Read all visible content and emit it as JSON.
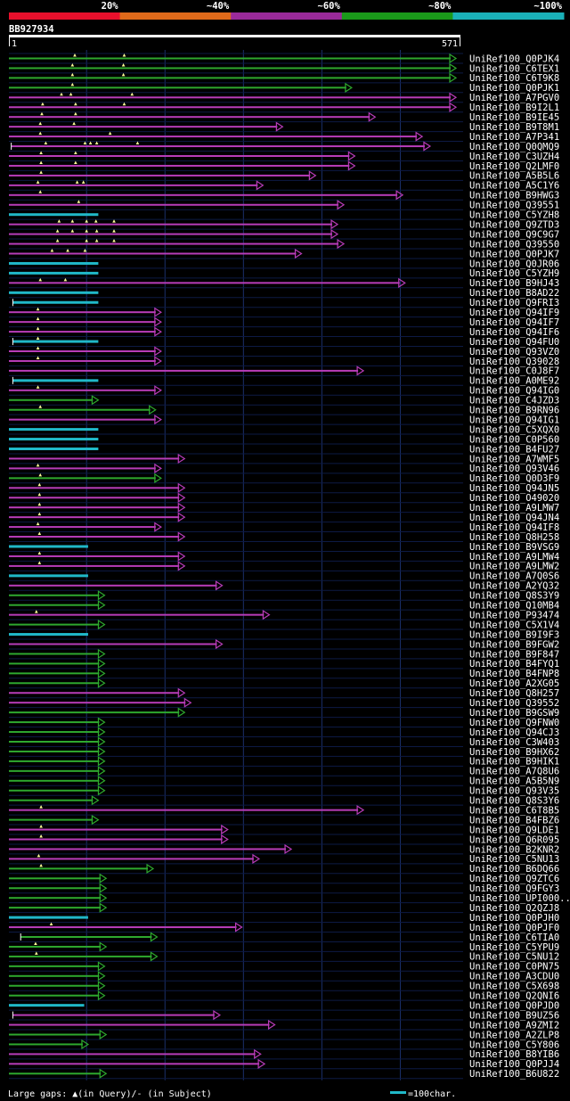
{
  "chart_data": {
    "type": "alignment-overview",
    "query_id": "BB927934",
    "ruler_start": "1",
    "ruler_end": "571",
    "query_length": 571,
    "identity_scale": [
      {
        "label": "20%",
        "color": "#e8102c"
      },
      {
        "label": "~40%",
        "color": "#e06a1a"
      },
      {
        "label": "~60%",
        "color": "#9a2a9a"
      },
      {
        "label": "~80%",
        "color": "#1a9a1a"
      },
      {
        "label": "~100%",
        "color": "#1ab0b8"
      }
    ],
    "colors": {
      "magenta": "#b83cb8",
      "green": "#2ea82e",
      "cyan": "#20b8c8",
      "grid": "#1a2f6a",
      "gap": "#ffff99"
    },
    "legend": {
      "gaps_text": "Large gaps: ▲(in Query)/- (in Subject)",
      "scale_text": "=100char.",
      "scale_chars": 100
    },
    "hits": [
      {
        "name": "UniRef100_Q0PJK4",
        "c": "g",
        "s": 1,
        "e": 571,
        "q": [
          85,
          148
        ]
      },
      {
        "name": "UniRef100_C6TEX1",
        "c": "g",
        "s": 1,
        "e": 571,
        "q": [
          82,
          147
        ]
      },
      {
        "name": "UniRef100_C6T9K8",
        "c": "g",
        "s": 1,
        "e": 571,
        "q": [
          82,
          147
        ]
      },
      {
        "name": "UniRef100_Q0PJK1",
        "c": "g",
        "s": 1,
        "e": 438,
        "q": [
          82
        ]
      },
      {
        "name": "UniRef100_A7PGV0",
        "c": "m",
        "s": 1,
        "e": 571,
        "q": [
          68,
          80,
          158
        ]
      },
      {
        "name": "UniRef100_B9I2L1",
        "c": "m",
        "s": 1,
        "e": 571,
        "q": [
          44,
          86,
          148
        ]
      },
      {
        "name": "UniRef100_B9IE45",
        "c": "m",
        "s": 1,
        "e": 468,
        "q": [
          43,
          86
        ]
      },
      {
        "name": "UniRef100_B9T8M1",
        "c": "m",
        "s": 1,
        "e": 350,
        "q": [
          41,
          84
        ]
      },
      {
        "name": "UniRef100_A7P341",
        "c": "m",
        "s": 1,
        "e": 528,
        "q": [
          41,
          130
        ]
      },
      {
        "name": "UniRef100_Q0QMQ9",
        "c": "m",
        "s": 4,
        "e": 538,
        "q": [
          48,
          98,
          105,
          113,
          165
        ]
      },
      {
        "name": "UniRef100_C3UZH4",
        "c": "m",
        "s": 1,
        "e": 442,
        "q": [
          42,
          86
        ]
      },
      {
        "name": "UniRef100_Q2LMF0",
        "c": "m",
        "s": 1,
        "e": 442,
        "q": [
          42,
          86
        ]
      },
      {
        "name": "UniRef100_A5B5L6",
        "c": "m",
        "s": 1,
        "e": 392,
        "q": [
          42
        ]
      },
      {
        "name": "UniRef100_A5C1Y6",
        "c": "m",
        "s": 1,
        "e": 325,
        "q": [
          38,
          88,
          96
        ]
      },
      {
        "name": "UniRef100_B9HWG3",
        "c": "m",
        "s": 1,
        "e": 503,
        "q": [
          41
        ]
      },
      {
        "name": "UniRef100_Q39551",
        "c": "m",
        "s": 1,
        "e": 428,
        "q": [
          90
        ]
      },
      {
        "name": "UniRef100_C5YZH8",
        "c": "c",
        "s": 1,
        "e": 115,
        "q": []
      },
      {
        "name": "UniRef100_Q9ZTD3",
        "c": "m",
        "s": 1,
        "e": 420,
        "q": [
          65,
          82,
          100,
          112,
          135
        ]
      },
      {
        "name": "UniRef100_Q9C9G7",
        "c": "m",
        "s": 1,
        "e": 420,
        "q": [
          63,
          82,
          100,
          113,
          135
        ]
      },
      {
        "name": "UniRef100_Q39550",
        "c": "m",
        "s": 1,
        "e": 428,
        "q": [
          63,
          100,
          113,
          135
        ]
      },
      {
        "name": "UniRef100_Q0PJK7",
        "c": "m",
        "s": 1,
        "e": 374,
        "q": [
          56,
          76,
          98
        ]
      },
      {
        "name": "UniRef100_Q0JR06",
        "c": "c",
        "s": 1,
        "e": 115,
        "q": []
      },
      {
        "name": "UniRef100_C5YZH9",
        "c": "c",
        "s": 1,
        "e": 115,
        "q": []
      },
      {
        "name": "UniRef100_B9HJ43",
        "c": "m",
        "s": 1,
        "e": 506,
        "q": [
          41,
          73
        ]
      },
      {
        "name": "UniRef100_B8AD22",
        "c": "c",
        "s": 1,
        "e": 115,
        "q": []
      },
      {
        "name": "UniRef100_Q9FRI3",
        "c": "c",
        "s": 6,
        "e": 115,
        "q": []
      },
      {
        "name": "UniRef100_Q94IF9",
        "c": "m",
        "s": 1,
        "e": 195,
        "q": [
          38
        ]
      },
      {
        "name": "UniRef100_Q94IF7",
        "c": "m",
        "s": 1,
        "e": 195,
        "q": [
          38
        ]
      },
      {
        "name": "UniRef100_Q94IF6",
        "c": "m",
        "s": 1,
        "e": 195,
        "q": [
          38
        ]
      },
      {
        "name": "UniRef100_Q94FU0",
        "c": "c",
        "s": 6,
        "e": 115,
        "q": [
          38
        ]
      },
      {
        "name": "UniRef100_Q93VZ0",
        "c": "m",
        "s": 1,
        "e": 195,
        "q": [
          38
        ]
      },
      {
        "name": "UniRef100_Q39028",
        "c": "m",
        "s": 1,
        "e": 195,
        "q": [
          38
        ]
      },
      {
        "name": "UniRef100_C0J8F7",
        "c": "m",
        "s": 1,
        "e": 453,
        "q": []
      },
      {
        "name": "UniRef100_A0ME92",
        "c": "c",
        "s": 6,
        "e": 115,
        "q": []
      },
      {
        "name": "UniRef100_Q94IG0",
        "c": "m",
        "s": 1,
        "e": 195,
        "q": [
          38
        ]
      },
      {
        "name": "UniRef100_C4JZD3",
        "c": "g",
        "s": 1,
        "e": 115,
        "q": []
      },
      {
        "name": "UniRef100_B9RN96",
        "c": "g",
        "s": 1,
        "e": 188,
        "q": [
          41
        ]
      },
      {
        "name": "UniRef100_Q94IG1",
        "c": "m",
        "s": 1,
        "e": 195,
        "q": []
      },
      {
        "name": "UniRef100_C5XQX0",
        "c": "c",
        "s": 1,
        "e": 115,
        "q": []
      },
      {
        "name": "UniRef100_C0P560",
        "c": "c",
        "s": 1,
        "e": 115,
        "q": []
      },
      {
        "name": "UniRef100_B4FU27",
        "c": "c",
        "s": 1,
        "e": 115,
        "q": []
      },
      {
        "name": "UniRef100_A7WMF5",
        "c": "m",
        "s": 1,
        "e": 225,
        "q": []
      },
      {
        "name": "UniRef100_Q93V46",
        "c": "m",
        "s": 1,
        "e": 195,
        "q": [
          38
        ]
      },
      {
        "name": "UniRef100_Q0D3F9",
        "c": "g",
        "s": 1,
        "e": 195,
        "q": [
          41
        ]
      },
      {
        "name": "UniRef100_Q94JN5",
        "c": "m",
        "s": 1,
        "e": 225,
        "q": [
          40
        ]
      },
      {
        "name": "UniRef100_O49020",
        "c": "m",
        "s": 1,
        "e": 225,
        "q": [
          40
        ]
      },
      {
        "name": "UniRef100_A9LMW7",
        "c": "m",
        "s": 1,
        "e": 225,
        "q": [
          40
        ]
      },
      {
        "name": "UniRef100_Q94JN4",
        "c": "m",
        "s": 1,
        "e": 225,
        "q": [
          40
        ]
      },
      {
        "name": "UniRef100_Q94IF8",
        "c": "m",
        "s": 1,
        "e": 195,
        "q": [
          38
        ]
      },
      {
        "name": "UniRef100_Q8H258",
        "c": "m",
        "s": 1,
        "e": 225,
        "q": [
          40
        ]
      },
      {
        "name": "UniRef100_B9VSG9",
        "c": "c",
        "s": 1,
        "e": 102,
        "q": []
      },
      {
        "name": "UniRef100_A9LMW4",
        "c": "m",
        "s": 1,
        "e": 225,
        "q": [
          40
        ]
      },
      {
        "name": "UniRef100_A9LMW2",
        "c": "m",
        "s": 1,
        "e": 225,
        "q": [
          40
        ]
      },
      {
        "name": "UniRef100_A7Q0S6",
        "c": "c",
        "s": 1,
        "e": 102,
        "q": []
      },
      {
        "name": "UniRef100_A2YQ32",
        "c": "m",
        "s": 1,
        "e": 273,
        "q": []
      },
      {
        "name": "UniRef100_Q8S3Y9",
        "c": "g",
        "s": 1,
        "e": 123,
        "q": []
      },
      {
        "name": "UniRef100_Q10MB4",
        "c": "g",
        "s": 1,
        "e": 123,
        "q": []
      },
      {
        "name": "UniRef100_P93474",
        "c": "m",
        "s": 1,
        "e": 333,
        "q": [
          36
        ]
      },
      {
        "name": "UniRef100_C5X1V4",
        "c": "g",
        "s": 1,
        "e": 123,
        "q": []
      },
      {
        "name": "UniRef100_B9I9F3",
        "c": "c",
        "s": 1,
        "e": 102,
        "q": []
      },
      {
        "name": "UniRef100_B9FGW2",
        "c": "m",
        "s": 1,
        "e": 273,
        "q": []
      },
      {
        "name": "UniRef100_B9F847",
        "c": "g",
        "s": 1,
        "e": 123,
        "q": []
      },
      {
        "name": "UniRef100_B4FYQ1",
        "c": "g",
        "s": 1,
        "e": 123,
        "q": []
      },
      {
        "name": "UniRef100_B4FNP8",
        "c": "g",
        "s": 1,
        "e": 123,
        "q": []
      },
      {
        "name": "UniRef100_A2XG05",
        "c": "g",
        "s": 1,
        "e": 123,
        "q": []
      },
      {
        "name": "UniRef100_Q8H257",
        "c": "m",
        "s": 1,
        "e": 225,
        "q": []
      },
      {
        "name": "UniRef100_Q39552",
        "c": "m",
        "s": 1,
        "e": 233,
        "q": []
      },
      {
        "name": "UniRef100_B9GSW9",
        "c": "g",
        "s": 1,
        "e": 225,
        "q": []
      },
      {
        "name": "UniRef100_Q9FNW0",
        "c": "g",
        "s": 1,
        "e": 123,
        "q": []
      },
      {
        "name": "UniRef100_Q94CJ3",
        "c": "g",
        "s": 1,
        "e": 123,
        "q": []
      },
      {
        "name": "UniRef100_C3W403",
        "c": "g",
        "s": 1,
        "e": 123,
        "q": []
      },
      {
        "name": "UniRef100_B9HX62",
        "c": "g",
        "s": 1,
        "e": 123,
        "q": []
      },
      {
        "name": "UniRef100_B9HIK1",
        "c": "g",
        "s": 1,
        "e": 123,
        "q": []
      },
      {
        "name": "UniRef100_A7Q8U6",
        "c": "g",
        "s": 1,
        "e": 123,
        "q": []
      },
      {
        "name": "UniRef100_A5B5N9",
        "c": "g",
        "s": 1,
        "e": 123,
        "q": []
      },
      {
        "name": "UniRef100_Q93V35",
        "c": "g",
        "s": 1,
        "e": 123,
        "q": []
      },
      {
        "name": "UniRef100_Q8S3Y6",
        "c": "g",
        "s": 1,
        "e": 115,
        "q": []
      },
      {
        "name": "UniRef100_C6T8B5",
        "c": "m",
        "s": 1,
        "e": 453,
        "q": [
          42
        ]
      },
      {
        "name": "UniRef100_B4FBZ6",
        "c": "g",
        "s": 1,
        "e": 115,
        "q": []
      },
      {
        "name": "UniRef100_Q9LDE1",
        "c": "m",
        "s": 1,
        "e": 280,
        "q": [
          42
        ]
      },
      {
        "name": "UniRef100_Q6R095",
        "c": "m",
        "s": 1,
        "e": 280,
        "q": [
          42
        ]
      },
      {
        "name": "UniRef100_B2KNR2",
        "c": "m",
        "s": 1,
        "e": 361,
        "q": []
      },
      {
        "name": "UniRef100_C5NU13",
        "c": "m",
        "s": 1,
        "e": 320,
        "q": [
          39
        ]
      },
      {
        "name": "UniRef100_B6DQ66",
        "c": "g",
        "s": 1,
        "e": 185,
        "q": [
          42
        ]
      },
      {
        "name": "UniRef100_Q9ZTC6",
        "c": "g",
        "s": 1,
        "e": 125,
        "q": []
      },
      {
        "name": "UniRef100_Q9FGY3",
        "c": "g",
        "s": 1,
        "e": 125,
        "q": []
      },
      {
        "name": "UniRef100_UPI000..",
        "c": "g",
        "s": 1,
        "e": 125,
        "q": []
      },
      {
        "name": "UniRef100_Q2QZJ8",
        "c": "g",
        "s": 1,
        "e": 125,
        "q": []
      },
      {
        "name": "UniRef100_Q0PJH0",
        "c": "c",
        "s": 1,
        "e": 102,
        "q": []
      },
      {
        "name": "UniRef100_Q0PJF0",
        "c": "m",
        "s": 1,
        "e": 298,
        "q": [
          55
        ]
      },
      {
        "name": "UniRef100_C6TIA0",
        "c": "g",
        "s": 16,
        "e": 190,
        "q": []
      },
      {
        "name": "UniRef100_C5YPU9",
        "c": "g",
        "s": 1,
        "e": 125,
        "q": [
          35
        ]
      },
      {
        "name": "UniRef100_C5NU12",
        "c": "g",
        "s": 1,
        "e": 190,
        "q": [
          36
        ]
      },
      {
        "name": "UniRef100_C0PN75",
        "c": "g",
        "s": 1,
        "e": 123,
        "q": []
      },
      {
        "name": "UniRef100_A3CDU0",
        "c": "g",
        "s": 1,
        "e": 123,
        "q": []
      },
      {
        "name": "UniRef100_C5X698",
        "c": "g",
        "s": 1,
        "e": 123,
        "q": []
      },
      {
        "name": "UniRef100_Q2QNI6",
        "c": "g",
        "s": 1,
        "e": 123,
        "q": []
      },
      {
        "name": "UniRef100_Q0PJD0",
        "c": "c",
        "s": 1,
        "e": 97,
        "q": []
      },
      {
        "name": "UniRef100_B9UZ56",
        "c": "m",
        "s": 6,
        "e": 270,
        "q": []
      },
      {
        "name": "UniRef100_A9ZMI2",
        "c": "m",
        "s": 1,
        "e": 340,
        "q": []
      },
      {
        "name": "UniRef100_A2ZLP8",
        "c": "g",
        "s": 1,
        "e": 125,
        "q": []
      },
      {
        "name": "UniRef100_C5Y806",
        "c": "g",
        "s": 1,
        "e": 102,
        "q": []
      },
      {
        "name": "UniRef100_B8YIB6",
        "c": "m",
        "s": 1,
        "e": 322,
        "q": []
      },
      {
        "name": "UniRef100_Q0PJJ4",
        "c": "m",
        "s": 1,
        "e": 327,
        "q": []
      },
      {
        "name": "UniRef100_B6U822",
        "c": "g",
        "s": 1,
        "e": 125,
        "q": []
      }
    ]
  }
}
